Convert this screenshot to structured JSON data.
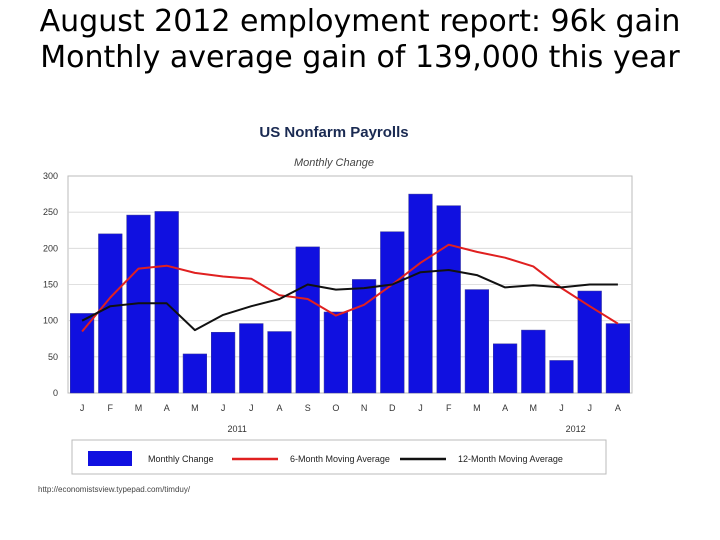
{
  "slide": {
    "title_line1": "August 2012 employment report: 96k gain",
    "title_line2": "Monthly average gain of 139,000 this year"
  },
  "chart_data": {
    "type": "bar",
    "title": "US Nonfarm Payrolls",
    "subtitle": "Monthly Change",
    "categories": [
      "J",
      "F",
      "M",
      "A",
      "M",
      "J",
      "J",
      "A",
      "S",
      "O",
      "N",
      "D",
      "J",
      "F",
      "M",
      "A",
      "M",
      "J",
      "J",
      "A"
    ],
    "year_labels": [
      {
        "label": "2011",
        "category_index": 5.5
      },
      {
        "label": "2012",
        "category_index": 17.5
      }
    ],
    "ylim": [
      0,
      300
    ],
    "yticks": [
      0,
      50,
      100,
      150,
      200,
      250,
      300
    ],
    "grid": true,
    "legend_position": "bottom",
    "series": [
      {
        "name": "Monthly Change",
        "kind": "bar",
        "color": "#1010e0",
        "values": [
          110,
          220,
          246,
          251,
          54,
          84,
          96,
          85,
          202,
          112,
          157,
          223,
          275,
          259,
          143,
          68,
          87,
          45,
          141,
          96
        ]
      },
      {
        "name": "6-Month Moving Average",
        "kind": "line",
        "color": "#e02020",
        "values": [
          85,
          132,
          172,
          176,
          166,
          161,
          158,
          135,
          130,
          107,
          122,
          150,
          180,
          205,
          195,
          187,
          175,
          145,
          120,
          96
        ]
      },
      {
        "name": "12-Month Moving Average",
        "kind": "line",
        "color": "#111111",
        "values": [
          100,
          120,
          124,
          124,
          87,
          108,
          120,
          130,
          150,
          143,
          145,
          150,
          167,
          170,
          163,
          146,
          149,
          146,
          150,
          150
        ]
      }
    ],
    "source": "http://economistsview.typepad.com/timduy/"
  }
}
